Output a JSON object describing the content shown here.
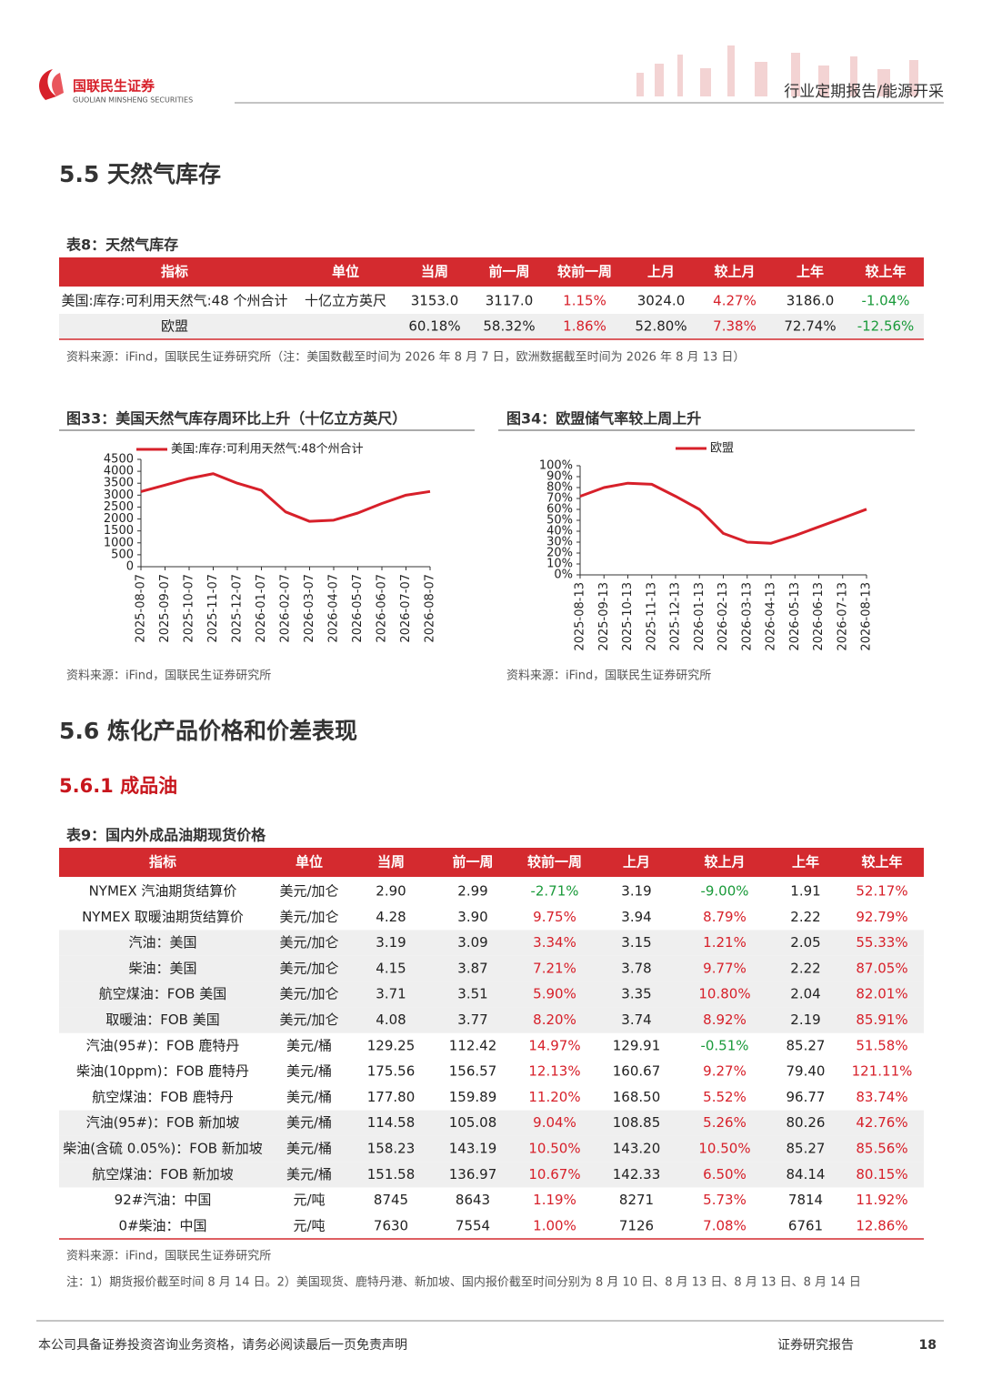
{
  "header": {
    "logo_cn": "国联民生证券",
    "logo_en": "GUOLIAN MINSHENG SECURITIES",
    "report_type": "行业定期报告/能源开采"
  },
  "section_5_5": {
    "title": "5.5 天然气库存"
  },
  "table8": {
    "caption": "表8：天然气库存",
    "header": [
      "指标",
      "单位",
      "当周",
      "前一周",
      "较前一周",
      "上月",
      "较上月",
      "上年",
      "较上年"
    ],
    "rows": [
      [
        "美国:库存:可利用天然气:48 个州合计",
        "十亿立方英尺",
        "3153.0",
        "3117.0",
        "1.15%",
        "3024.0",
        "4.27%",
        "3186.0",
        "-1.04%"
      ],
      [
        "欧盟",
        null,
        "60.18%",
        "58.32%",
        "1.86%",
        "52.80%",
        "7.38%",
        "72.74%",
        "-12.56%"
      ]
    ],
    "source": "资料来源：iFind，国联民生证券研究所（注：美国数截至时间为 2026 年 8 月 7 日，欧洲数据截至时间为 2026 年 8 月 13 日）"
  },
  "chart_data": [
    {
      "type": "line",
      "title": "图33：美国天然气库存周环比上升（十亿立方英尺）",
      "x": [
        "2025-08-07",
        "2025-09-07",
        "2025-10-07",
        "2025-11-07",
        "2025-12-07",
        "2026-01-07",
        "2026-02-07",
        "2026-03-07",
        "2026-04-07",
        "2026-05-07",
        "2026-06-07",
        "2026-07-07",
        "2026-08-07"
      ],
      "series": [
        {
          "name": "美国:库存:可利用天然气:48个州合计",
          "color": "#d7202a",
          "values": [
            3150,
            3420,
            3700,
            3900,
            3500,
            3200,
            2300,
            1900,
            1950,
            2250,
            2650,
            3000,
            3153
          ]
        }
      ],
      "ylim": [
        0,
        4500
      ],
      "yticks": [
        0,
        500,
        1000,
        1500,
        2000,
        2500,
        3000,
        3500,
        4000,
        4500
      ],
      "source": "资料来源：iFind，国联民生证券研究所"
    },
    {
      "type": "line",
      "title": "图34：欧盟储气率较上周上升",
      "x": [
        "2025-08-13",
        "2025-09-13",
        "2025-10-13",
        "2025-11-13",
        "2025-12-13",
        "2026-01-13",
        "2026-02-13",
        "2026-03-13",
        "2026-04-13",
        "2026-05-13",
        "2026-06-13",
        "2026-07-13",
        "2026-08-13"
      ],
      "series": [
        {
          "name": "欧盟",
          "color": "#d7202a",
          "values": [
            72,
            80,
            84,
            83,
            72,
            60,
            38,
            30,
            29,
            36,
            44,
            52,
            60.18
          ]
        }
      ],
      "ylim": [
        0,
        100
      ],
      "yticks": [
        {
          "value": 0,
          "label": "0%"
        },
        {
          "value": 10,
          "label": "10%"
        },
        {
          "value": 20,
          "label": "20%"
        },
        {
          "value": 30,
          "label": "30%"
        },
        {
          "value": 40,
          "label": "40%"
        },
        {
          "value": 50,
          "label": "50%"
        },
        {
          "value": 60,
          "label": "60%"
        },
        {
          "value": 70,
          "label": "70%"
        },
        {
          "value": 80,
          "label": "80%"
        },
        {
          "value": 90,
          "label": "90%"
        },
        {
          "value": 100,
          "label": "100%"
        }
      ],
      "source": "资料来源：iFind，国联民生证券研究所"
    }
  ],
  "section_5_6": {
    "title": "5.6 炼化产品价格和价差表现",
    "subsection": "5.6.1 成品油"
  },
  "table9": {
    "caption": "表9：国内外成品油期现货价格",
    "header": [
      "指标",
      "单位",
      "当周",
      "前一周",
      "较前一周",
      "上月",
      "较上月",
      "上年",
      "较上年"
    ],
    "rows": [
      [
        "NYMEX 汽油期货结算价",
        "美元/加仑",
        "2.90",
        "2.99",
        "-2.71%",
        "3.19",
        "-9.00%",
        "1.91",
        "52.17%"
      ],
      [
        "NYMEX 取暖油期货结算价",
        "美元/加仑",
        "4.28",
        "3.90",
        "9.75%",
        "3.94",
        "8.79%",
        "2.22",
        "92.79%"
      ],
      [
        "汽油：美国",
        "美元/加仑",
        "3.19",
        "3.09",
        "3.34%",
        "3.15",
        "1.21%",
        "2.05",
        "55.33%"
      ],
      [
        "柴油：美国",
        "美元/加仑",
        "4.15",
        "3.87",
        "7.21%",
        "3.78",
        "9.77%",
        "2.22",
        "87.05%"
      ],
      [
        "航空煤油：FOB 美国",
        "美元/加仑",
        "3.71",
        "3.51",
        "5.90%",
        "3.35",
        "10.80%",
        "2.04",
        "82.01%"
      ],
      [
        "取暖油：FOB 美国",
        "美元/加仑",
        "4.08",
        "3.77",
        "8.20%",
        "3.74",
        "8.92%",
        "2.19",
        "85.91%"
      ],
      [
        "汽油(95#)：FOB 鹿特丹",
        "美元/桶",
        "129.25",
        "112.42",
        "14.97%",
        "129.91",
        "-0.51%",
        "85.27",
        "51.58%"
      ],
      [
        "柴油(10ppm)：FOB 鹿特丹",
        "美元/桶",
        "175.56",
        "156.57",
        "12.13%",
        "160.67",
        "9.27%",
        "79.40",
        "121.11%"
      ],
      [
        "航空煤油：FOB 鹿特丹",
        "美元/桶",
        "177.80",
        "159.89",
        "11.20%",
        "168.50",
        "5.52%",
        "96.77",
        "83.74%"
      ],
      [
        "汽油(95#)：FOB 新加坡",
        "美元/桶",
        "114.58",
        "105.08",
        "9.04%",
        "108.85",
        "5.26%",
        "80.26",
        "42.76%"
      ],
      [
        "柴油(含硫 0.05%)：FOB 新加坡",
        "美元/桶",
        "158.23",
        "143.19",
        "10.50%",
        "143.20",
        "10.50%",
        "85.27",
        "85.56%"
      ],
      [
        "航空煤油：FOB 新加坡",
        "美元/桶",
        "151.58",
        "136.97",
        "10.67%",
        "142.33",
        "6.50%",
        "84.14",
        "80.15%"
      ],
      [
        "92#汽油：中国",
        "元/吨",
        "8745",
        "8643",
        "1.19%",
        "8271",
        "5.73%",
        "7814",
        "11.92%"
      ],
      [
        "0#柴油：中国",
        "元/吨",
        "7630",
        "7554",
        "1.00%",
        "7126",
        "7.08%",
        "6761",
        "12.86%"
      ]
    ],
    "source": "资料来源：iFind，国联民生证券研究所",
    "note": "注：1）期货报价截至时间 8 月 14 日。2）美国现货、鹿特丹港、新加坡、国内报价截至时间分别为 8 月 10 日、8 月 13 日、8 月 13 日、8 月 14 日"
  },
  "footer": {
    "disclaimer": "本公司具备证券投资咨询业务资格，请务必阅读最后一页免责声明",
    "label": "证券研究报告",
    "page": "18"
  }
}
